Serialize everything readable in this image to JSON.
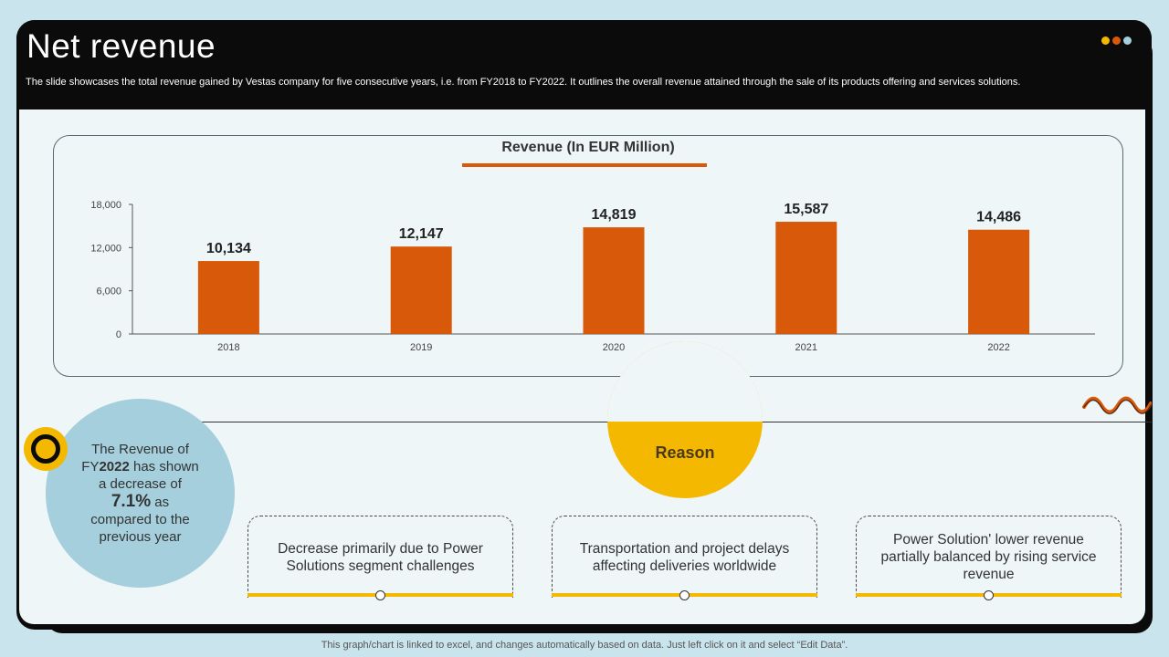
{
  "header": {
    "title": "Net revenue",
    "subtitle": "The slide showcases the total revenue gained by Vestas company for five consecutive years, i.e. from FY2018 to FY2022. It outlines the overall revenue attained through the sale of its products offering and services solutions.",
    "dot_colors": [
      "#f5b800",
      "#d9590a",
      "#a5cfdc"
    ]
  },
  "chart_data": {
    "type": "bar",
    "title": "Revenue (In EUR Million)",
    "categories": [
      "2018",
      "2019",
      "2020",
      "2021",
      "2022"
    ],
    "values": [
      10134,
      12147,
      14819,
      15587,
      14486
    ],
    "value_labels": [
      "10,134",
      "12,147",
      "14,819",
      "15,587",
      "14,486"
    ],
    "yticks": [
      "0",
      "6,000",
      "12,000",
      "18,000"
    ],
    "ytick_values": [
      0,
      6000,
      12000,
      18000
    ],
    "ylim": [
      0,
      18000
    ],
    "xlabel": "",
    "ylabel": "",
    "bar_color": "#d9590a",
    "grid": false
  },
  "stat": {
    "line1": "The Revenue of",
    "line2_prefix": "FY",
    "line2_bold": "2022",
    "line2_suffix": " has shown",
    "line3": "a decrease of",
    "percent": "7.1%",
    "line4": " as",
    "line5": "compared to the",
    "line6": "previous year"
  },
  "reason": {
    "label": "Reason"
  },
  "cards": [
    {
      "text": "Decrease primarily due to Power Solutions segment challenges"
    },
    {
      "text": "Transportation and project delays affecting deliveries worldwide"
    },
    {
      "text": "Power Solution' lower revenue partially balanced by rising service revenue"
    }
  ],
  "footer": {
    "note": "This graph/chart is linked to excel, and changes automatically based on data. Just left click on it and select “Edit Data”."
  }
}
